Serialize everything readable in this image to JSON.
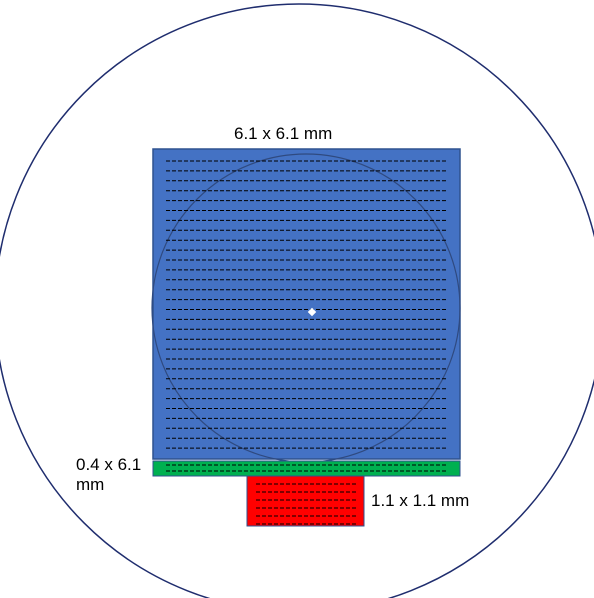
{
  "labels": {
    "main_region": "6.1 x 6.1 mm",
    "green_strip": "0.4 x 6.1\nmm",
    "red_region": "1.1 x 1.1 mm"
  },
  "colors": {
    "outer_circle": "#1f2d6e",
    "main_region_fill": "#4472c4",
    "main_region_border": "#2f528f",
    "inner_circle": "#2f4a80",
    "green_strip_fill": "#00b050",
    "red_region_fill": "#ff0000",
    "scan_lines": "#000000",
    "center_marker": "#ffffff"
  },
  "scan_lines": {
    "main_region_count": 30,
    "green_strip_count": 2,
    "red_region_count": 6
  }
}
